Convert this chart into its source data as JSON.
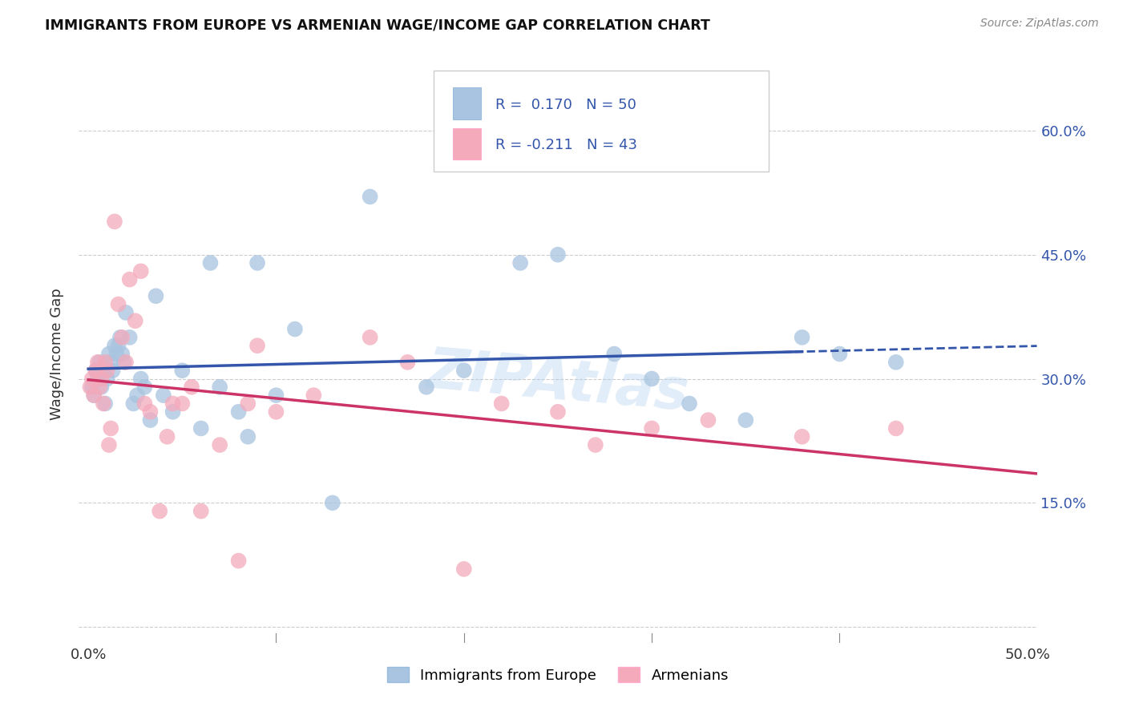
{
  "title": "IMMIGRANTS FROM EUROPE VS ARMENIAN WAGE/INCOME GAP CORRELATION CHART",
  "source": "Source: ZipAtlas.com",
  "ylabel": "Wage/Income Gap",
  "ytick_vals": [
    0.0,
    0.15,
    0.3,
    0.45,
    0.6
  ],
  "ytick_labels": [
    "",
    "15.0%",
    "30.0%",
    "45.0%",
    "60.0%"
  ],
  "blue_color": "#A8C4E0",
  "pink_color": "#F4AABB",
  "blue_line_color": "#3355AA",
  "pink_line_color": "#CC3366",
  "watermark": "ZIPAtlas",
  "legend1_r": 0.17,
  "legend1_n": 50,
  "legend2_r": -0.211,
  "legend2_n": 43,
  "blue_x": [
    0.002,
    0.003,
    0.004,
    0.005,
    0.006,
    0.007,
    0.008,
    0.009,
    0.01,
    0.011,
    0.012,
    0.013,
    0.014,
    0.015,
    0.016,
    0.017,
    0.018,
    0.019,
    0.02,
    0.022,
    0.024,
    0.026,
    0.028,
    0.03,
    0.033,
    0.036,
    0.04,
    0.045,
    0.05,
    0.06,
    0.065,
    0.07,
    0.08,
    0.085,
    0.09,
    0.1,
    0.11,
    0.13,
    0.15,
    0.18,
    0.2,
    0.23,
    0.25,
    0.28,
    0.3,
    0.32,
    0.35,
    0.38,
    0.4,
    0.43
  ],
  "blue_y": [
    0.29,
    0.28,
    0.31,
    0.3,
    0.32,
    0.29,
    0.31,
    0.27,
    0.3,
    0.33,
    0.32,
    0.31,
    0.34,
    0.33,
    0.34,
    0.35,
    0.33,
    0.32,
    0.38,
    0.35,
    0.27,
    0.28,
    0.3,
    0.29,
    0.25,
    0.4,
    0.28,
    0.26,
    0.31,
    0.24,
    0.44,
    0.29,
    0.26,
    0.23,
    0.44,
    0.28,
    0.36,
    0.15,
    0.52,
    0.29,
    0.31,
    0.44,
    0.45,
    0.33,
    0.3,
    0.27,
    0.25,
    0.35,
    0.33,
    0.32
  ],
  "pink_x": [
    0.001,
    0.002,
    0.003,
    0.004,
    0.005,
    0.006,
    0.007,
    0.008,
    0.009,
    0.01,
    0.011,
    0.012,
    0.014,
    0.016,
    0.018,
    0.02,
    0.022,
    0.025,
    0.028,
    0.03,
    0.033,
    0.038,
    0.042,
    0.045,
    0.05,
    0.055,
    0.06,
    0.07,
    0.08,
    0.085,
    0.09,
    0.1,
    0.12,
    0.15,
    0.17,
    0.2,
    0.22,
    0.25,
    0.27,
    0.3,
    0.33,
    0.38,
    0.43
  ],
  "pink_y": [
    0.29,
    0.3,
    0.28,
    0.31,
    0.32,
    0.29,
    0.3,
    0.27,
    0.32,
    0.31,
    0.22,
    0.24,
    0.49,
    0.39,
    0.35,
    0.32,
    0.42,
    0.37,
    0.43,
    0.27,
    0.26,
    0.14,
    0.23,
    0.27,
    0.27,
    0.29,
    0.14,
    0.22,
    0.08,
    0.27,
    0.34,
    0.26,
    0.28,
    0.35,
    0.32,
    0.07,
    0.27,
    0.26,
    0.22,
    0.24,
    0.25,
    0.23,
    0.24
  ]
}
